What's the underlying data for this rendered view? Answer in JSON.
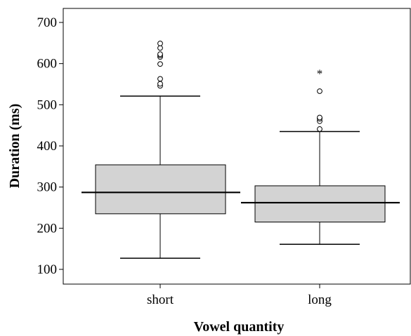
{
  "chart_data": {
    "type": "boxplot",
    "title": "",
    "xlabel": "Vowel quantity",
    "ylabel": "Duration (ms)",
    "categories": [
      "short",
      "long"
    ],
    "ylim": [
      65,
      740
    ],
    "yticks": [
      100,
      200,
      300,
      400,
      500,
      600,
      700
    ],
    "grid": false,
    "box_fill": "#d3d3d3",
    "boxes": [
      {
        "category": "short",
        "whisker_low": 127,
        "q1": 235,
        "median": 287,
        "q3": 354,
        "whisker_high": 521,
        "outliers": [
          546,
          551,
          563,
          599,
          616,
          620,
          623,
          638,
          649
        ],
        "extremes": []
      },
      {
        "category": "long",
        "whisker_low": 161,
        "q1": 215,
        "median": 262,
        "q3": 303,
        "whisker_high": 435,
        "outliers": [
          441,
          460,
          466,
          469,
          533
        ],
        "extremes": [
          578
        ]
      }
    ]
  }
}
